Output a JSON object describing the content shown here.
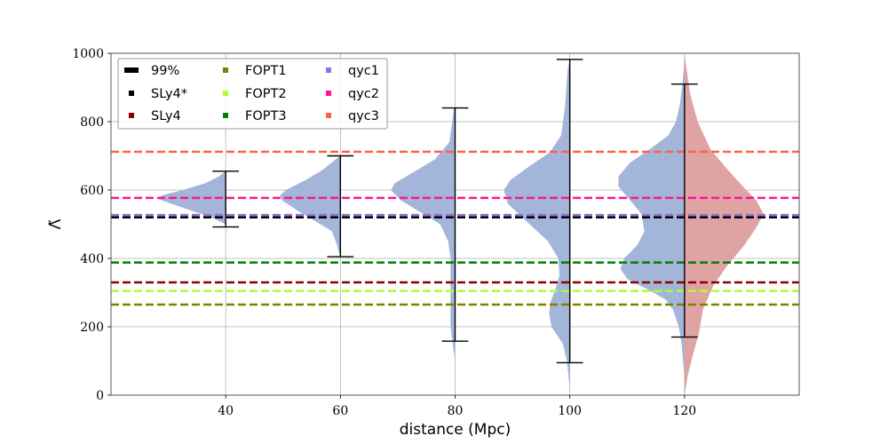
{
  "chart_data": {
    "type": "violin",
    "xlabel": "distance (Mpc)",
    "ylabel": "Λ̃",
    "xlim": [
      20,
      140
    ],
    "ylim": [
      0,
      1000
    ],
    "xticks": [
      "40",
      "60",
      "80",
      "100",
      "120"
    ],
    "yticks": [
      "0",
      "200",
      "400",
      "600",
      "800",
      "1000"
    ],
    "grid": true,
    "legend_position": "top-left",
    "reference_lines": [
      {
        "name": "SLy4*",
        "value": 520,
        "color": "#000000"
      },
      {
        "name": "SLy4",
        "value": 330,
        "color": "#8b0000"
      },
      {
        "name": "FOPT1",
        "value": 265,
        "color": "#808000"
      },
      {
        "name": "FOPT2",
        "value": 305,
        "color": "#adff2f"
      },
      {
        "name": "FOPT3",
        "value": 388,
        "color": "#008000"
      },
      {
        "name": "qyc1",
        "value": 527,
        "color": "#9370db"
      },
      {
        "name": "qyc2",
        "value": 577,
        "color": "#ff1493"
      },
      {
        "name": "qyc3",
        "value": 712,
        "color": "#ff6347"
      }
    ],
    "legend": [
      {
        "label": "99%",
        "color": "#000000",
        "style": "errorbar"
      },
      {
        "label": "SLy4*",
        "color": "#000000",
        "style": "dash"
      },
      {
        "label": "SLy4",
        "color": "#8b0000",
        "style": "dash"
      },
      {
        "label": "FOPT1",
        "color": "#808000",
        "style": "dash"
      },
      {
        "label": "FOPT2",
        "color": "#adff2f",
        "style": "dash"
      },
      {
        "label": "FOPT3",
        "color": "#008000",
        "style": "dash"
      },
      {
        "label": "qyc1",
        "color": "#9370db",
        "style": "dash"
      },
      {
        "label": "qyc2",
        "color": "#ff1493",
        "style": "dash"
      },
      {
        "label": "qyc3",
        "color": "#ff6347",
        "style": "dash"
      }
    ],
    "violins": [
      {
        "distance": 40,
        "interval_99": [
          492,
          655
        ],
        "color": "#a3b5d8",
        "left_profile": [
          [
            500,
            0
          ],
          [
            520,
            2.5
          ],
          [
            540,
            6
          ],
          [
            560,
            9.5
          ],
          [
            575,
            12
          ],
          [
            585,
            11
          ],
          [
            600,
            7.5
          ],
          [
            620,
            3.5
          ],
          [
            640,
            1.2
          ],
          [
            655,
            0
          ]
        ]
      },
      {
        "distance": 60,
        "interval_99": [
          405,
          700
        ],
        "color": "#a3b5d8",
        "left_profile": [
          [
            405,
            0
          ],
          [
            450,
            0.8
          ],
          [
            480,
            1.5
          ],
          [
            510,
            4.5
          ],
          [
            540,
            7.5
          ],
          [
            570,
            10.2
          ],
          [
            585,
            10.5
          ],
          [
            600,
            9.5
          ],
          [
            630,
            6
          ],
          [
            660,
            3
          ],
          [
            690,
            0.8
          ],
          [
            700,
            0
          ]
        ]
      },
      {
        "distance": 80,
        "interval_99": [
          158,
          840
        ],
        "color": "#a3b5d8",
        "left_profile": [
          [
            100,
            0
          ],
          [
            160,
            0.5
          ],
          [
            200,
            0.8
          ],
          [
            300,
            0.8
          ],
          [
            400,
            0.8
          ],
          [
            450,
            1.2
          ],
          [
            500,
            2.6
          ],
          [
            540,
            6.5
          ],
          [
            570,
            9.5
          ],
          [
            600,
            11.2
          ],
          [
            620,
            10.5
          ],
          [
            650,
            7.5
          ],
          [
            690,
            3.5
          ],
          [
            740,
            1
          ],
          [
            800,
            0.5
          ],
          [
            840,
            0.2
          ]
        ]
      },
      {
        "distance": 100,
        "interval_99": [
          95,
          982
        ],
        "color": "#a3b5d8",
        "left_profile": [
          [
            20,
            0
          ],
          [
            100,
            0.5
          ],
          [
            150,
            1.2
          ],
          [
            200,
            3.2
          ],
          [
            240,
            3.6
          ],
          [
            270,
            3.4
          ],
          [
            310,
            2.5
          ],
          [
            350,
            1.8
          ],
          [
            400,
            2
          ],
          [
            450,
            3.8
          ],
          [
            500,
            7
          ],
          [
            560,
            10.8
          ],
          [
            600,
            11.5
          ],
          [
            630,
            10.3
          ],
          [
            670,
            7
          ],
          [
            710,
            3.5
          ],
          [
            760,
            1.5
          ],
          [
            850,
            0.8
          ],
          [
            950,
            0.4
          ],
          [
            982,
            0
          ]
        ]
      },
      {
        "distance": 120,
        "interval_99": [
          170,
          910
        ],
        "color": "#a3b5d8",
        "color_right": "#e0a3a3",
        "left_profile": [
          [
            50,
            0
          ],
          [
            150,
            0.5
          ],
          [
            200,
            1
          ],
          [
            250,
            2
          ],
          [
            280,
            3.3
          ],
          [
            310,
            6.5
          ],
          [
            340,
            10
          ],
          [
            370,
            11.2
          ],
          [
            400,
            10.5
          ],
          [
            440,
            8.2
          ],
          [
            480,
            7
          ],
          [
            530,
            7.5
          ],
          [
            570,
            9.5
          ],
          [
            610,
            11.5
          ],
          [
            640,
            11.5
          ],
          [
            680,
            9.5
          ],
          [
            720,
            6
          ],
          [
            760,
            2.8
          ],
          [
            800,
            1.5
          ],
          [
            850,
            0.8
          ],
          [
            920,
            0.3
          ],
          [
            980,
            0
          ]
        ],
        "right_profile": [
          [
            0,
            0
          ],
          [
            60,
            0.6
          ],
          [
            120,
            1.5
          ],
          [
            180,
            2.5
          ],
          [
            250,
            3.2
          ],
          [
            320,
            5
          ],
          [
            380,
            7.5
          ],
          [
            440,
            10.5
          ],
          [
            490,
            12.5
          ],
          [
            530,
            13.8
          ],
          [
            570,
            12.5
          ],
          [
            610,
            10.2
          ],
          [
            660,
            7.5
          ],
          [
            720,
            4.5
          ],
          [
            800,
            2.3
          ],
          [
            880,
            1
          ],
          [
            950,
            0.4
          ],
          [
            1000,
            0
          ]
        ]
      }
    ]
  }
}
